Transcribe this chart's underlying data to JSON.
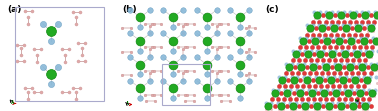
{
  "fig_width": 3.78,
  "fig_height": 1.11,
  "dpi": 100,
  "background_color": "#ffffff",
  "panels": [
    "(a)",
    "(b)",
    "(c)"
  ],
  "panel_label_fontsize": 6.5,
  "panel_label_color": "#000000",
  "atom_colors": {
    "Nb": "#22aa22",
    "H_blue": "#88b8d8",
    "H_pink": "#e0aaaa",
    "H_red": "#dd2222"
  }
}
